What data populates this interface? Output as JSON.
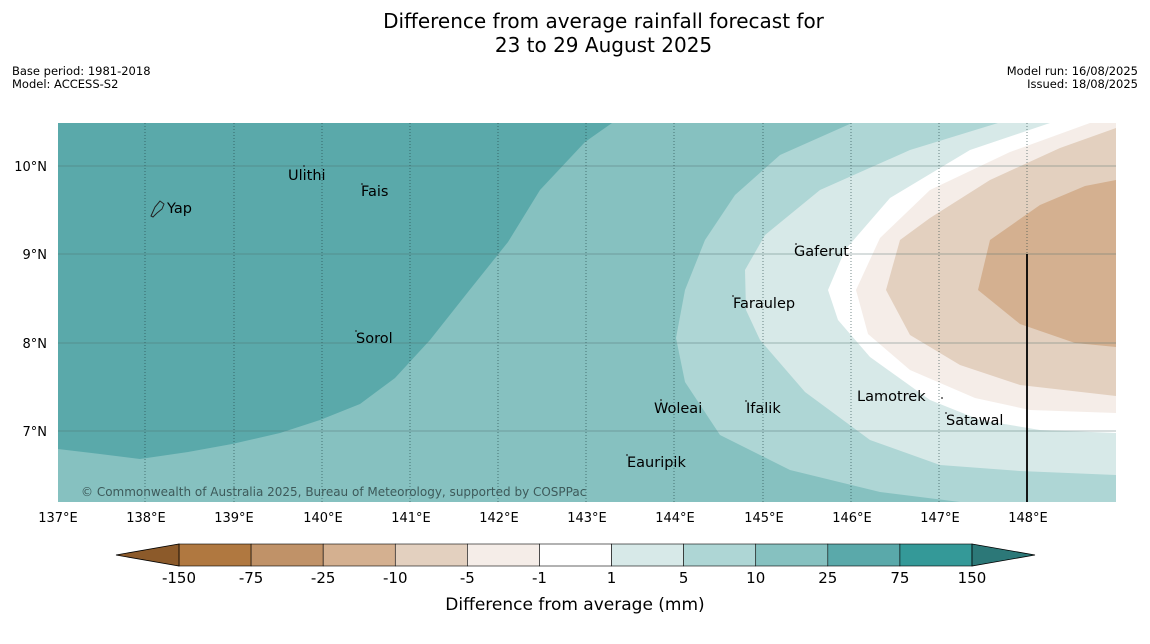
{
  "title": {
    "line1": "Difference from average rainfall forecast for",
    "line2": "23 to 29 August 2025"
  },
  "meta": {
    "base_period": "Base period: 1981-2018",
    "model": "Model: ACCESS-S2",
    "model_run": "Model run: 16/08/2025",
    "issued": "Issued: 18/08/2025"
  },
  "map": {
    "lon_ticks": [
      "137°E",
      "138°E",
      "139°E",
      "140°E",
      "141°E",
      "142°E",
      "143°E",
      "144°E",
      "145°E",
      "146°E",
      "147°E",
      "148°E"
    ],
    "lat_ticks": [
      "10°N",
      "9°N",
      "8°N",
      "7°N"
    ],
    "places": [
      "Ulithi",
      "Fais",
      "Yap",
      "Gaferut",
      "Faraulep",
      "Sorol",
      "Lamotrek",
      "Satawal",
      "Woleai",
      "Ifalik",
      "Eauripik"
    ],
    "copyright": "© Commonwealth of Australia 2025, Bureau of Meteorology, supported by COSPPac"
  },
  "colorbar": {
    "labels": [
      "-150",
      "-75",
      "-25",
      "-10",
      "-5",
      "-1",
      "1",
      "5",
      "10",
      "25",
      "75",
      "150"
    ],
    "colors": [
      "#8c5a2a",
      "#b07840",
      "#c09268",
      "#d4b090",
      "#e3d0bf",
      "#f5ede8",
      "#ffffff",
      "#d7e9e8",
      "#aed6d5",
      "#86c1c0",
      "#5aa9aa",
      "#349998",
      "#2c7878"
    ],
    "title": "Difference from average (mm)"
  }
}
